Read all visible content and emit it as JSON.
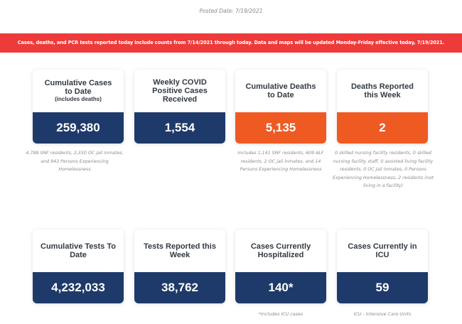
{
  "posted_date": "Posted Date: 7/19/2021",
  "banner": "Cases, deaths, and PCR tests reported today include counts from 7/14/2021 through today. Data and maps will be updated Monday-Friday effective today, 7/19/2021.",
  "cards": [
    {
      "title": "Cumulative Cases to Date",
      "subtitle": "(includes deaths)",
      "value": "259,380",
      "color": "#1e3a6a",
      "note": "4,788 SNF residents, 2,330 OC jail inmates, and 943 Persons Experiencing Homelessness"
    },
    {
      "title": "Weekly COVID Positive Cases Received",
      "subtitle": "",
      "value": "1,554",
      "color": "#1e3a6a",
      "note": ""
    },
    {
      "title": "Cumulative Deaths to Date",
      "subtitle": "",
      "value": "5,135",
      "color": "#ef5a23",
      "note": "Includes 1,141 SNF residents, 609 ALF residents, 2 OC jail inmates, and 14 Persons Experiencing Homelessness"
    },
    {
      "title": "Deaths Reported this Week",
      "subtitle": "",
      "value": "2",
      "color": "#ef5a23",
      "note": "0 skilled nursing facility residents, 0 skilled nursing facility staff, 0 assisted living facility residents, 0 OC Jail inmates, 0 Persons Experiencing Homelessness, 2 residents (not living in a facility)"
    },
    {
      "title": "Cumulative Tests To Date",
      "subtitle": "",
      "value": "4,232,033",
      "color": "#1e3a6a",
      "note": ""
    },
    {
      "title": "Tests Reported this Week",
      "subtitle": "",
      "value": "38,762",
      "color": "#1e3a6a",
      "note": ""
    },
    {
      "title": "Cases Currently Hospitalized",
      "subtitle": "",
      "value": "140*",
      "color": "#1e3a6a",
      "note": "*Includes ICU cases"
    },
    {
      "title": "Cases Currently in ICU",
      "subtitle": "",
      "value": "59",
      "color": "#1e3a6a",
      "note": "ICU - Intensive Care Units"
    }
  ]
}
